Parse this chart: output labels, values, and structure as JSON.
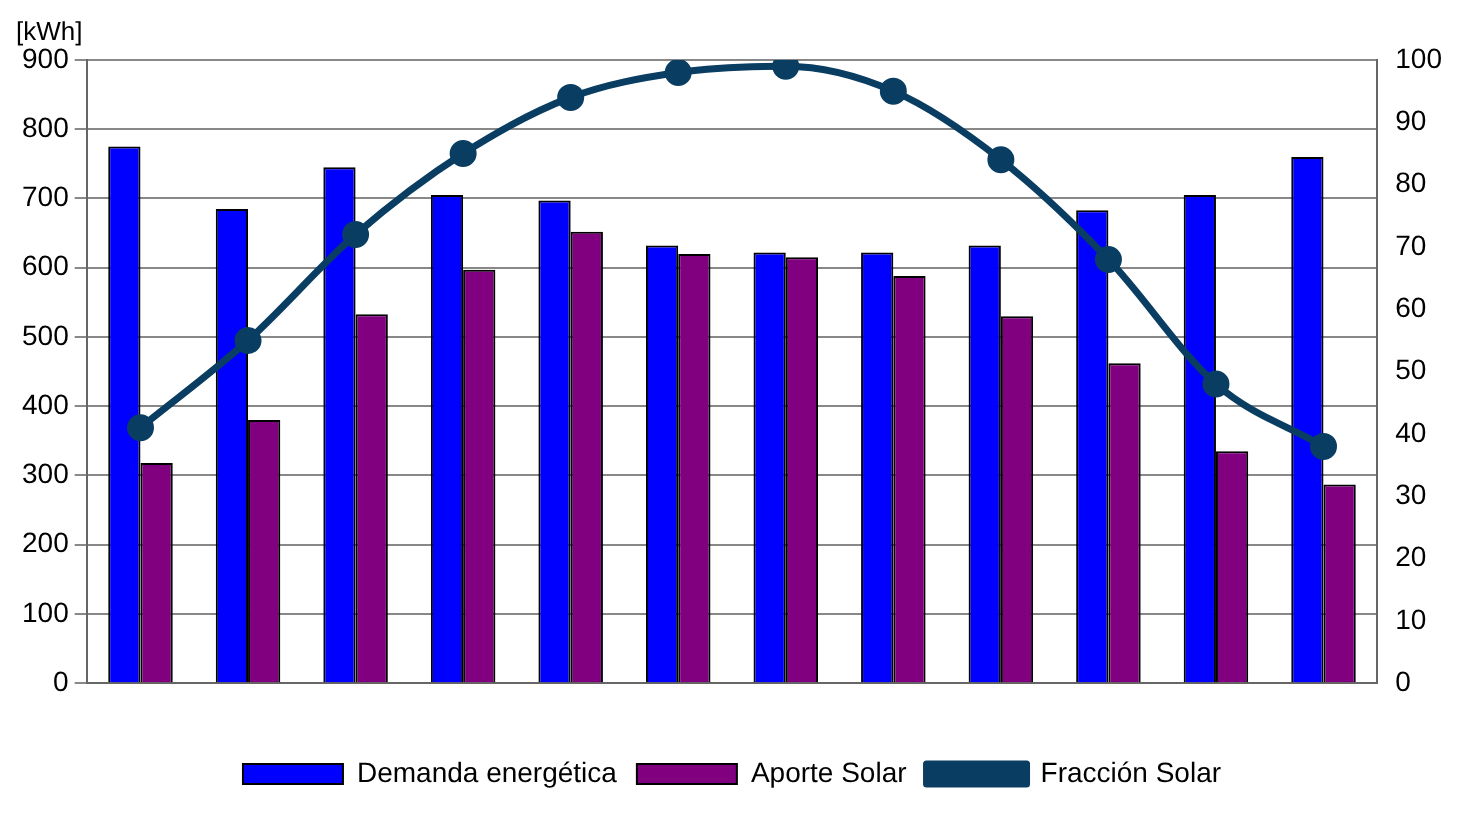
{
  "chart_data": {
    "type": "bar",
    "ylabel": "[kWh]",
    "categories": [
      null,
      null,
      null,
      null,
      null,
      null,
      null,
      null,
      null,
      null,
      null,
      null
    ],
    "series": [
      {
        "name": "Demanda energética",
        "color": "#0000ff",
        "values": [
          775,
          685,
          745,
          705,
          697,
          632,
          622,
          622,
          632,
          683,
          705,
          760
        ]
      },
      {
        "name": "Aporte Solar",
        "color": "#800080",
        "values": [
          318,
          380,
          533,
          597,
          652,
          620,
          615,
          588,
          530,
          462,
          335,
          287
        ]
      },
      {
        "name": "Fracción Solar",
        "type": "line",
        "axis": "y2",
        "color": "#0a3d62",
        "marker": "circle",
        "values": [
          41,
          55,
          72,
          85,
          94,
          98,
          99,
          95,
          84,
          68,
          48,
          38
        ]
      }
    ],
    "ylim": [
      0,
      900
    ],
    "yticks": [
      0,
      100,
      200,
      300,
      400,
      500,
      600,
      700,
      800,
      900
    ],
    "y2lim": [
      0,
      100
    ],
    "y2ticks": [
      0,
      10,
      20,
      30,
      40,
      50,
      60,
      70,
      80,
      90,
      100
    ],
    "grid": "y",
    "legend": "bottom"
  }
}
